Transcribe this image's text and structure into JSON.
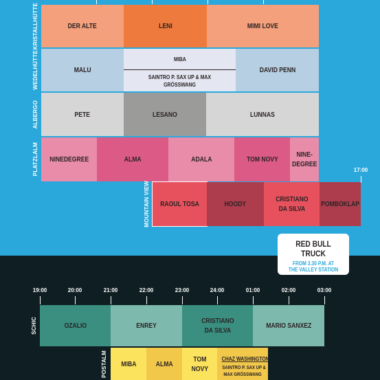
{
  "colors": {
    "sky": "#2aa8dc",
    "night": "#0e1e22",
    "salmon": "#f4a07c",
    "orange": "#ef7a3d",
    "lightblue": "#b7cfe2",
    "palelavender": "#e4e7f2",
    "lightgray": "#d6d6d6",
    "midgray": "#9b9b99",
    "pinklight": "#e98caa",
    "pinkdark": "#dc5a86",
    "red": "#e6515d",
    "maroon": "#ad3d4d",
    "teal": "#3a8f80",
    "tealLight": "#7db9ad",
    "yellow": "#fbe35e"
  },
  "top_tick": "17:00",
  "rows_top": {
    "kristallhuette": {
      "label": "KRISTALLHÜTTE",
      "acts": [
        "DER ALTE",
        "LENI",
        "MIMI LOVE"
      ]
    },
    "wedelhuette": {
      "label": "WEDELHÜTTE",
      "acts": [
        "MALU",
        "MIBA",
        "SAINTRO P. SAX UP & MAX GRÖSSWANG",
        "DAVID PENN"
      ]
    },
    "albergo": {
      "label": "ALBERGO",
      "acts": [
        "PETE",
        "LESANO",
        "LUNNAS"
      ]
    },
    "platzlalm": {
      "label": "PLATZLALM",
      "acts": [
        "NINEDEGREE",
        "ALMA",
        "ADALA",
        "TOM NOVY",
        "NINE-\nDEGREE"
      ]
    },
    "mountainview": {
      "label": "MOUNTAIN VIEW",
      "acts": [
        "RAOUL TOSA",
        "HOODY",
        "CRISTIANO\nDA SILVA",
        "POMBOKLAP"
      ]
    }
  },
  "truck": {
    "title": "RED BULL TRUCK",
    "line1": "FROM 3.30 P.M. AT",
    "line2": "THE VALLEY STATION"
  },
  "bottom_ticks": [
    "19:00",
    "20:00",
    "21:00",
    "22:00",
    "23:00",
    "24:00",
    "01:00",
    "02:00",
    "03:00"
  ],
  "rows_bottom": {
    "schic": {
      "label": "SCHIC",
      "acts": [
        "OZALIO",
        "ENREY",
        "CRISTIANO\nDA SILVA",
        "MARIO SANXEZ"
      ]
    },
    "postalm": {
      "label": "POSTALM",
      "acts": [
        "MIBA",
        "ALMA",
        "TOM\nNOVY",
        "CHAZ WASHINGTON",
        "SAINTRO P. SAX UP &",
        "MAX GRÖSSWANG"
      ]
    }
  }
}
